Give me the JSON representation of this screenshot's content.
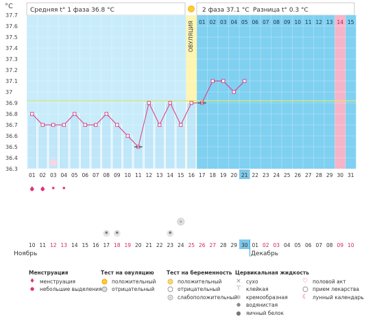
{
  "chart_data": {
    "type": "line",
    "title": "",
    "unit_label": "°C",
    "header": {
      "phase1": "Средняя t° 1 фаза 36.8 °C",
      "phase2": "2 фаза 37.1 °C",
      "diff": "Разница t° 0.3 °C"
    },
    "ovulation_label": "ОВУЛЯЦИЯ",
    "ylim": [
      36.3,
      37.7
    ],
    "y_ticks": [
      "36.3",
      "36.4",
      "36.5",
      "36.6",
      "36.7",
      "36.8",
      "36.9",
      "37",
      "37.1",
      "37.2",
      "37.3",
      "37.4",
      "37.5",
      "37.6",
      "37.7"
    ],
    "coverline": 36.92,
    "cycle_days": [
      "01",
      "02",
      "03",
      "04",
      "05",
      "06",
      "07",
      "08",
      "09",
      "10",
      "11",
      "12",
      "13",
      "14",
      "15",
      "16",
      "17",
      "18",
      "19",
      "20",
      "21",
      "22",
      "23",
      "24",
      "25",
      "26",
      "27",
      "28",
      "29",
      "30",
      "31"
    ],
    "phase2_days": [
      "01",
      "02",
      "03",
      "04",
      "05",
      "06",
      "07",
      "08",
      "09",
      "10",
      "11",
      "12",
      "13",
      "14",
      "15"
    ],
    "current_cycle_day": "21",
    "ovulation_cycle_day": "16",
    "highlight_phase2_day": "14",
    "series": [
      {
        "values": [
          36.8,
          36.7,
          36.7,
          36.7,
          36.8,
          36.7,
          36.7,
          36.8,
          36.7,
          36.6,
          36.5,
          36.9,
          36.7,
          36.9,
          36.7,
          36.9,
          36.9,
          37.1,
          37.1,
          37.0,
          37.1,
          null,
          null,
          null,
          null,
          null,
          null,
          null,
          null,
          null,
          null
        ],
        "color": "#e0347a"
      }
    ],
    "menstruation_rows": [
      [
        "full",
        "full",
        "drop",
        "drop"
      ]
    ],
    "lunar_icon_day_index": 2,
    "cervical_icon_day_indices": [
      7,
      8,
      13
    ],
    "pregnancy_test_icon_day_index": 14,
    "dates": [
      "10",
      "11",
      "12",
      "13",
      "14",
      "15",
      "16",
      "17",
      "18",
      "19",
      "20",
      "21",
      "22",
      "23",
      "24",
      "25",
      "26",
      "27",
      "28",
      "29",
      "30",
      "01",
      "02",
      "03",
      "04",
      "05",
      "06",
      "07",
      "08",
      "09",
      "10"
    ],
    "weekend_date_indices": [
      2,
      3,
      8,
      9,
      15,
      16,
      17,
      22,
      23,
      29,
      30
    ],
    "today_date_index": 20,
    "month_left": "Ноябрь",
    "month_right": "Декабрь"
  },
  "legend": {
    "menstruation": {
      "title": "Менструация",
      "items": [
        "менструация",
        "небольшие выделения"
      ]
    },
    "ovulation_test": {
      "title": "Тест на овуляцию",
      "items": [
        "положительный",
        "отрицательный"
      ]
    },
    "pregnancy_test": {
      "title": "Тест на беременность",
      "items": [
        "положительный",
        "отрицательный",
        "слабоположительный"
      ]
    },
    "cervical": {
      "title": "Цервикальная жидкость",
      "items": [
        "сухо",
        "клейкая",
        "кремообразная",
        "водянистая",
        "яичный белок"
      ]
    },
    "other": {
      "items": [
        "половой акт",
        "прием лекарства",
        "лунный календарь"
      ]
    }
  },
  "colors": {
    "phase1_bg": "#c9ecfb",
    "phase2_bg": "#7fd0f1",
    "ovulation_bg": "#fdf5b0",
    "highlight": "#f7b3c8",
    "line": "#e0347a",
    "coverline": "#d6e87a"
  }
}
